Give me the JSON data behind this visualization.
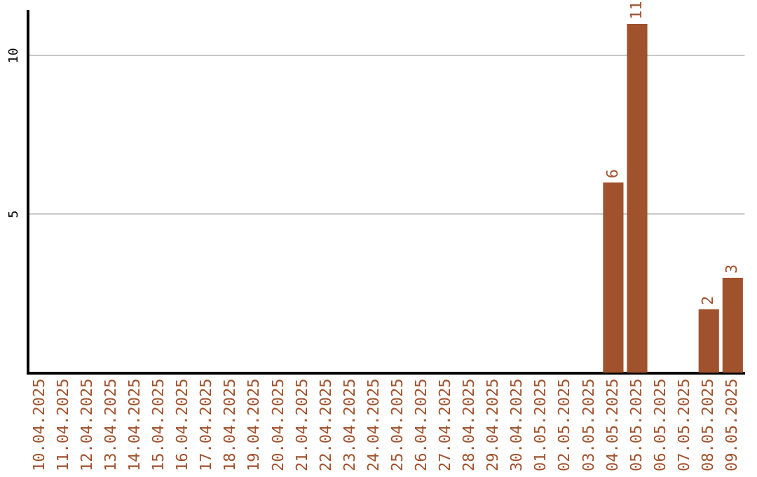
{
  "chart_data": {
    "type": "bar",
    "categories": [
      "10.04.2025",
      "11.04.2025",
      "12.04.2025",
      "13.04.2025",
      "14.04.2025",
      "15.04.2025",
      "16.04.2025",
      "17.04.2025",
      "18.04.2025",
      "19.04.2025",
      "20.04.2025",
      "21.04.2025",
      "22.04.2025",
      "23.04.2025",
      "24.04.2025",
      "25.04.2025",
      "26.04.2025",
      "27.04.2025",
      "28.04.2025",
      "29.04.2025",
      "30.04.2025",
      "01.05.2025",
      "02.05.2025",
      "03.05.2025",
      "04.05.2025",
      "05.05.2025",
      "06.05.2025",
      "07.05.2025",
      "08.05.2025",
      "09.05.2025"
    ],
    "values": [
      0,
      0,
      0,
      0,
      0,
      0,
      0,
      0,
      0,
      0,
      0,
      0,
      0,
      0,
      0,
      0,
      0,
      0,
      0,
      0,
      0,
      0,
      0,
      0,
      6,
      11,
      0,
      0,
      2,
      3
    ],
    "value_labels": [
      null,
      null,
      null,
      null,
      null,
      null,
      null,
      null,
      null,
      null,
      null,
      null,
      null,
      null,
      null,
      null,
      null,
      null,
      null,
      null,
      null,
      null,
      null,
      null,
      "6",
      "11",
      null,
      null,
      "2",
      "3"
    ],
    "color": "#a0522d",
    "ylim": [
      0,
      11.4
    ],
    "yticks": [
      5,
      10
    ],
    "grid": "y",
    "legend": false
  }
}
